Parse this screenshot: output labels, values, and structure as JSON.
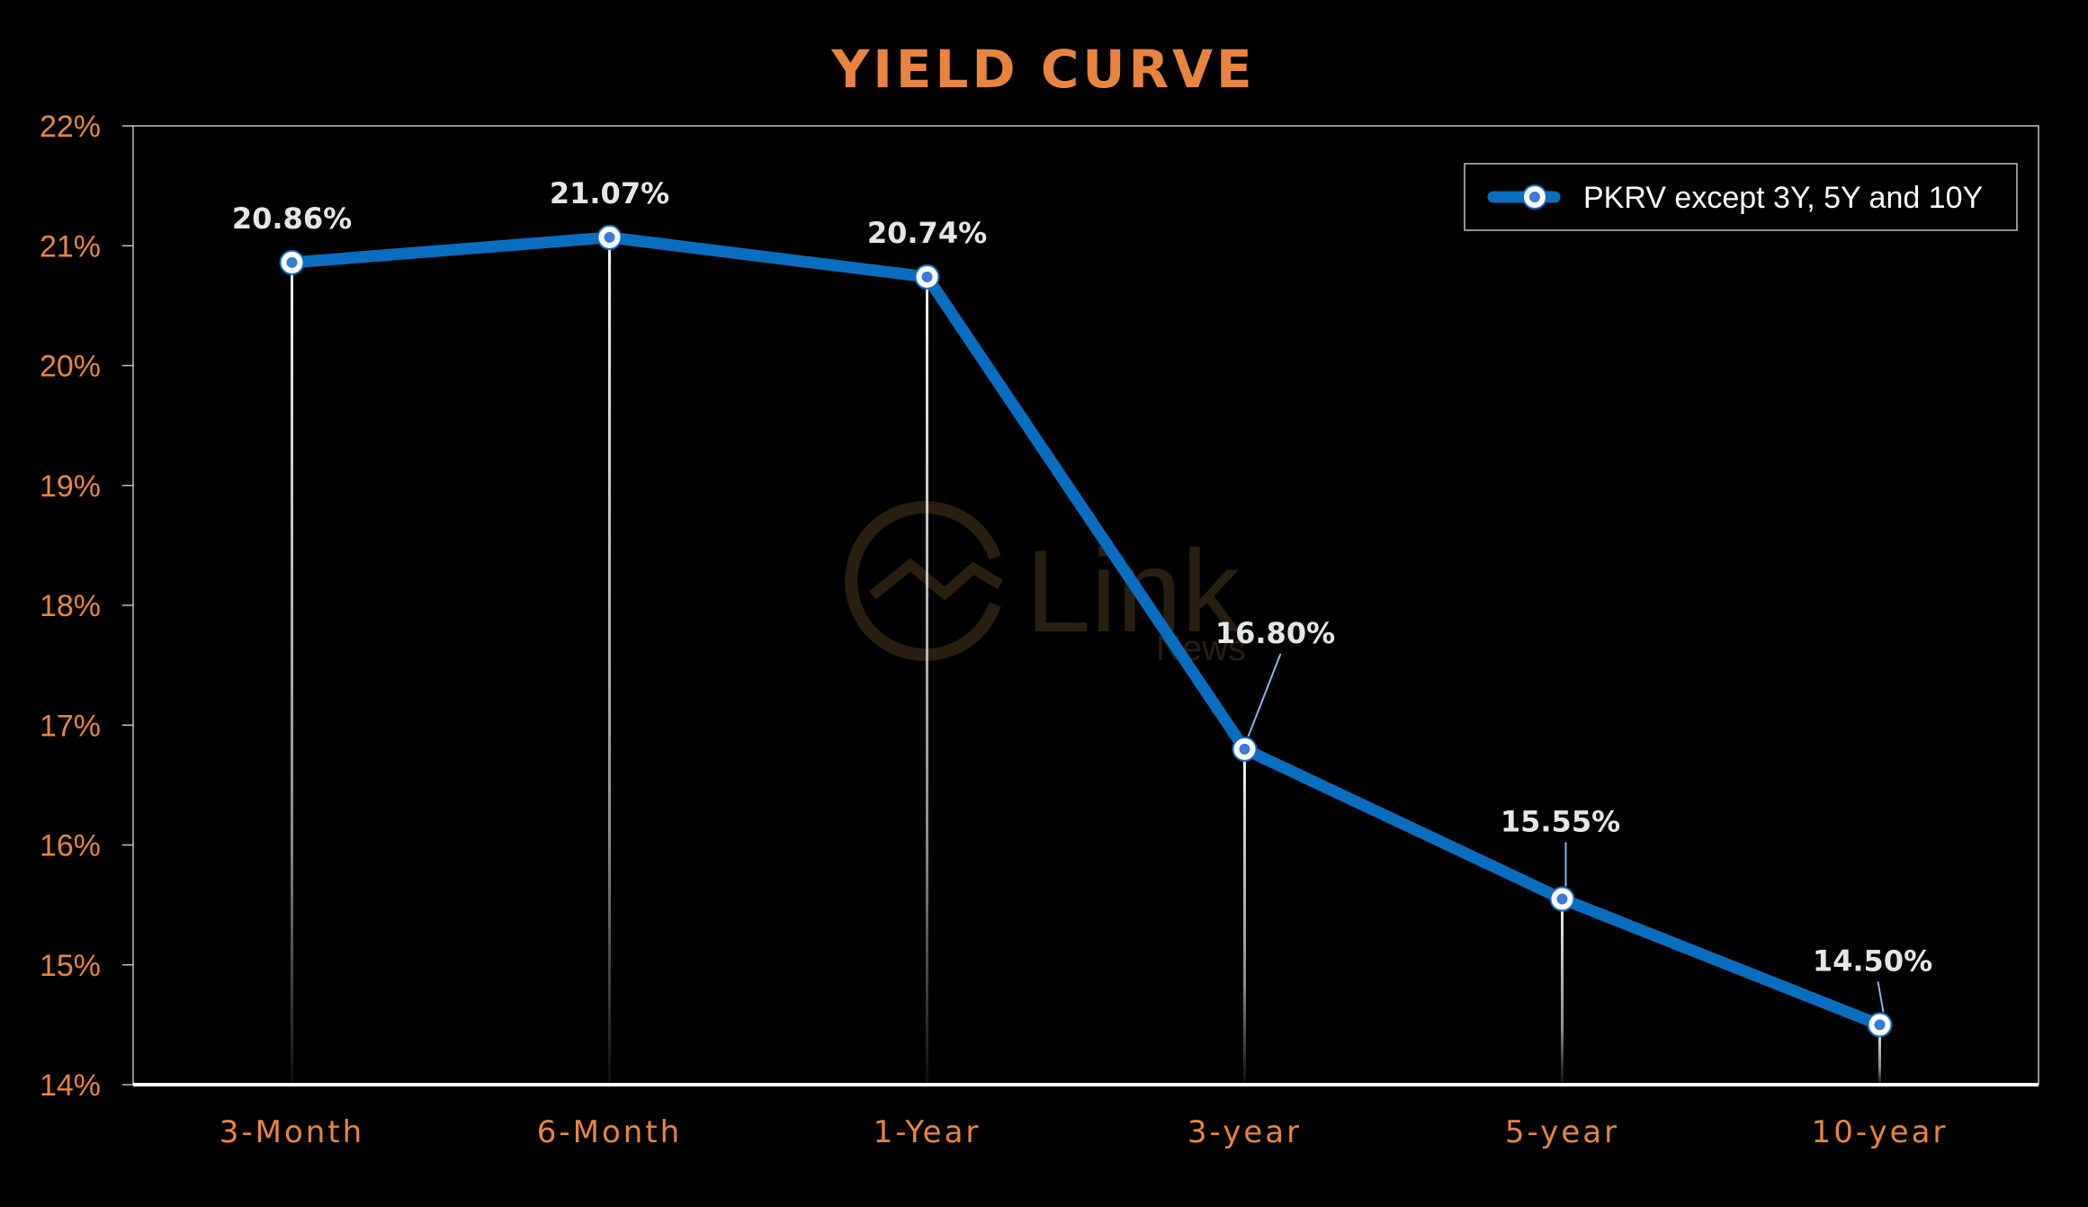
{
  "colors": {
    "background": "#000000",
    "accent_orange": "#E8843F",
    "series_blue": "#0A6EC0",
    "label_text": "#E6E6E6",
    "plot_border": "#BFBFBF",
    "watermark": "#4A3A1E"
  },
  "watermark": {
    "word": "Link",
    "sub": "News"
  },
  "chart_data": {
    "type": "line",
    "title": "YIELD CURVE",
    "xlabel": "",
    "ylabel": "",
    "categories": [
      "3-Month",
      "6-Month",
      "1-Year",
      "3-year",
      "5-year",
      "10-year"
    ],
    "ylim": [
      14,
      22
    ],
    "yticks": [
      14,
      15,
      16,
      17,
      18,
      19,
      20,
      21,
      22
    ],
    "ytick_labels": [
      "14%",
      "15%",
      "16%",
      "17%",
      "18%",
      "19%",
      "20%",
      "21%",
      "22%"
    ],
    "grid": false,
    "drop_lines": true,
    "legend_position": "top-right",
    "series": [
      {
        "name": "PKRV except 3Y, 5Y and 10Y",
        "values": [
          20.86,
          21.07,
          20.74,
          16.8,
          15.55,
          14.5
        ],
        "data_labels": [
          "20.86%",
          "21.07%",
          "20.74%",
          "16.80%",
          "15.55%",
          "14.50%"
        ]
      }
    ]
  }
}
